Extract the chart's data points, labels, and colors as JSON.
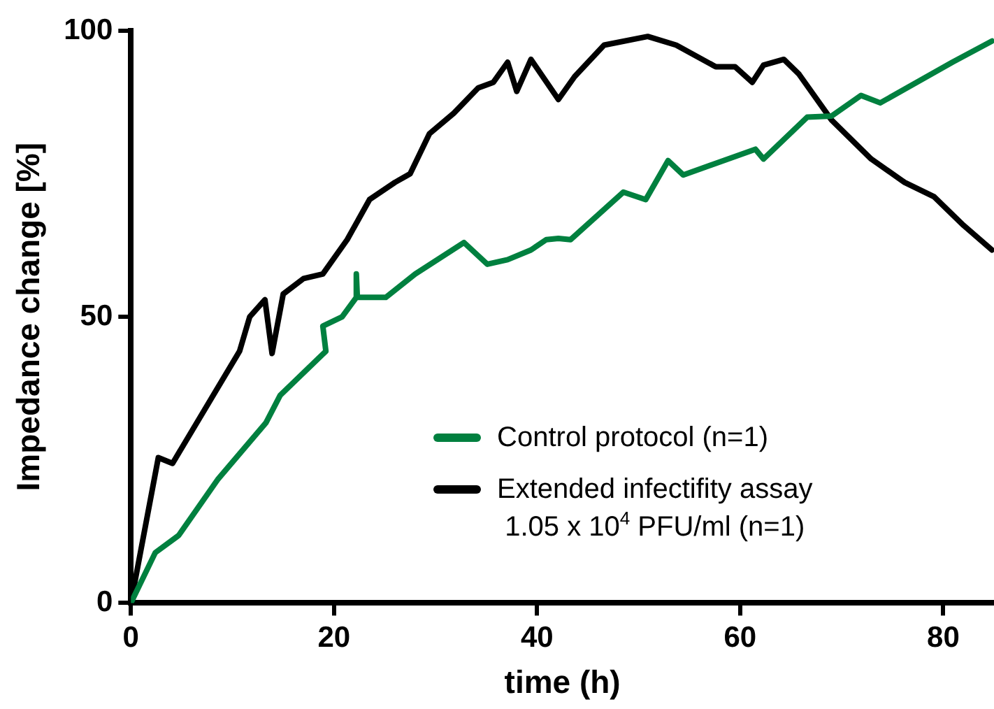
{
  "chart_data": {
    "type": "line",
    "xlabel": "time (h)",
    "ylabel": "Impedance change [%]",
    "xlim": [
      0,
      85
    ],
    "ylim": [
      0,
      100
    ],
    "xticks": [
      0,
      20,
      40,
      60,
      80
    ],
    "yticks": [
      0,
      50,
      100
    ],
    "grid": false,
    "legend": "bottom",
    "line_style": "solid",
    "series": [
      {
        "name": "Control protocol (n=1)",
        "color": "#00803f",
        "x": [
          0,
          2.4,
          4.7,
          8.6,
          13.3,
          14.7,
          19.2,
          18.9,
          20.8,
          22.2,
          22.2,
          22.3,
          25.1,
          28,
          32.8,
          35.1,
          37.1,
          39.4,
          40.9,
          42.1,
          43.3,
          48.5,
          50.7,
          52.9,
          54.4,
          61.5,
          62.3,
          66.6,
          69,
          71.9,
          73.8,
          80.9,
          84.8
        ],
        "values": [
          0,
          8.8,
          11.8,
          21.7,
          31.5,
          36.3,
          44,
          48.4,
          50,
          53.4,
          57.5,
          53.4,
          53.4,
          57.5,
          63,
          59.2,
          60,
          61.7,
          63.5,
          63.7,
          63.5,
          71.8,
          70.5,
          77.3,
          74.8,
          79.3,
          77.6,
          84.9,
          85.1,
          88.7,
          87.4,
          94.5,
          98.2
        ]
      },
      {
        "name": "Extended infectifity assay\n1.05 x 10$^{4}$ PFU/ml (n=1)",
        "color": "#000000",
        "x": [
          0,
          2.7,
          4.1,
          10.7,
          11.7,
          13.2,
          13.9,
          15,
          17,
          18.9,
          21.3,
          23.5,
          26,
          27.5,
          29.4,
          31.8,
          34.2,
          35.7,
          37.1,
          38,
          39.4,
          42.1,
          43.7,
          46.6,
          50.9,
          53.7,
          57.6,
          59.5,
          61.2,
          62.3,
          64.3,
          65.8,
          69,
          72.9,
          76.2,
          79.1,
          82,
          84.8
        ],
        "values": [
          0,
          25.4,
          24.4,
          44,
          50,
          53,
          43.6,
          54,
          56.7,
          57.5,
          63.5,
          70.5,
          73.5,
          75,
          82,
          85.6,
          90,
          91,
          94.5,
          89.4,
          95,
          88,
          92,
          97.5,
          99,
          97.5,
          93.7,
          93.7,
          91,
          94,
          95,
          92.4,
          84.4,
          77.6,
          73.5,
          71,
          66,
          61.7
        ]
      }
    ]
  }
}
